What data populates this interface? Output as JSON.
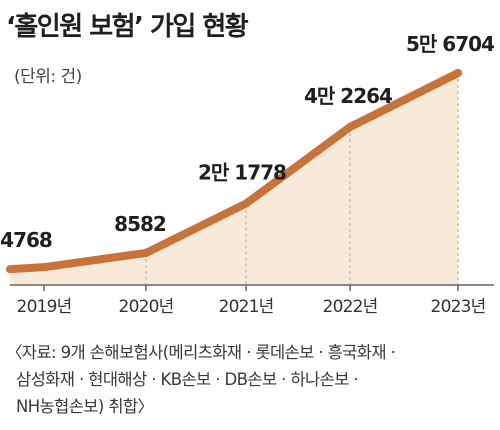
{
  "chart_data": {
    "type": "area",
    "title": "‘홀인원 보험’ 가입 현황",
    "unit_label": "(단위: 건)",
    "categories": [
      "2019년",
      "2020년",
      "2021년",
      "2022년",
      "2023년"
    ],
    "series": [
      {
        "values": [
          4768,
          8582,
          21778,
          42264,
          56704
        ]
      }
    ],
    "data_labels": [
      "4768",
      "8582",
      "2만 1778",
      "4만 2264",
      "5만 6704"
    ],
    "ylim": [
      0,
      65000
    ],
    "grid": false,
    "colors": {
      "line": "#c8733a",
      "fill": "#f8ead9",
      "axis": "#666666"
    }
  },
  "source_lines": [
    "〈자료: 9개 손해보험사(메리츠화재 · 롯데손보 · 흥국화재 ·",
    "삼성화재 · 현대해상 · KB손보 · DB손보 · 하나손보 ·",
    "NH농협손보) 취합〉"
  ]
}
